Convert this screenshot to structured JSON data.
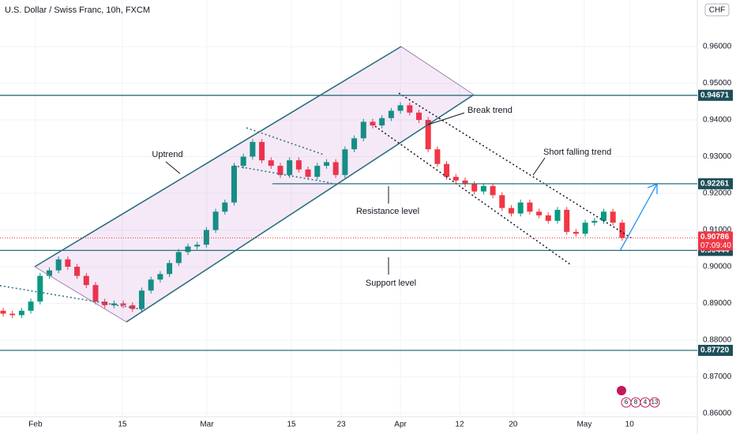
{
  "chart_data": {
    "type": "candlestick",
    "title": "U.S. Dollar / Swiss Franc, 10h, FXCM",
    "currency": "CHF",
    "up_color": "#089981",
    "down_color": "#f23645",
    "xlim": [
      -0.34,
      75.13
    ],
    "ylim": [
      0.85914,
      0.97269
    ],
    "xticks": [
      {
        "value": 3.5,
        "label": "Feb"
      },
      {
        "value": 12.9,
        "label": "15"
      },
      {
        "value": 22.05,
        "label": "Mar"
      },
      {
        "value": 31.2,
        "label": "15"
      },
      {
        "value": 36.6,
        "label": "23"
      },
      {
        "value": 43,
        "label": "Apr"
      },
      {
        "value": 49.4,
        "label": "12"
      },
      {
        "value": 55.2,
        "label": "20"
      },
      {
        "value": 62.9,
        "label": "May"
      },
      {
        "value": 67.8,
        "label": "10"
      }
    ],
    "yticks": [
      {
        "value": 0.86,
        "label": "0.86000"
      },
      {
        "value": 0.87,
        "label": "0.87000"
      },
      {
        "value": 0.88,
        "label": "0.88000"
      },
      {
        "value": 0.89,
        "label": "0.89000"
      },
      {
        "value": 0.9,
        "label": "0.90000"
      },
      {
        "value": 0.91,
        "label": "0.91000"
      },
      {
        "value": 0.92,
        "label": "0.92000"
      },
      {
        "value": 0.93,
        "label": "0.93000"
      },
      {
        "value": 0.94,
        "label": "0.94000"
      },
      {
        "value": 0.95,
        "label": "0.95000"
      },
      {
        "value": 0.96,
        "label": "0.96000"
      }
    ],
    "open": [
      0.888,
      0.8872,
      0.8868,
      0.888,
      0.8905,
      0.8975,
      0.899,
      0.902,
      0.9,
      0.8975,
      0.895,
      0.8905,
      0.8895,
      0.89,
      0.8895,
      0.8885,
      0.8935,
      0.8965,
      0.898,
      0.901,
      0.904,
      0.9055,
      0.906,
      0.91,
      0.915,
      0.9175,
      0.9275,
      0.93,
      0.934,
      0.929,
      0.9275,
      0.925,
      0.929,
      0.9265,
      0.9245,
      0.9275,
      0.9285,
      0.925,
      0.932,
      0.935,
      0.9395,
      0.9385,
      0.9405,
      0.9425,
      0.944,
      0.942,
      0.94,
      0.932,
      0.928,
      0.9245,
      0.9235,
      0.9225,
      0.9205,
      0.922,
      0.9195,
      0.916,
      0.9145,
      0.9175,
      0.915,
      0.914,
      0.9125,
      0.9155,
      0.9095,
      0.909,
      0.912,
      0.9125,
      0.915,
      0.912
    ],
    "high": [
      0.8888,
      0.888,
      0.8888,
      0.8913,
      0.8983,
      0.8998,
      0.9028,
      0.9028,
      0.9008,
      0.8983,
      0.8958,
      0.8913,
      0.8908,
      0.8908,
      0.8903,
      0.8943,
      0.8973,
      0.8988,
      0.9018,
      0.9048,
      0.9063,
      0.9068,
      0.9108,
      0.9158,
      0.9183,
      0.9283,
      0.9308,
      0.9348,
      0.9348,
      0.9298,
      0.9283,
      0.9298,
      0.9298,
      0.9273,
      0.9283,
      0.9293,
      0.9293,
      0.9328,
      0.9358,
      0.9403,
      0.9403,
      0.9413,
      0.9433,
      0.9448,
      0.9448,
      0.9428,
      0.9408,
      0.9328,
      0.9288,
      0.9253,
      0.9243,
      0.9233,
      0.9228,
      0.9228,
      0.9203,
      0.9168,
      0.9183,
      0.9183,
      0.9158,
      0.9148,
      0.9163,
      0.9163,
      0.9103,
      0.9128,
      0.9133,
      0.9158,
      0.9158,
      0.9128
    ],
    "low": [
      0.8864,
      0.886,
      0.886,
      0.8872,
      0.8897,
      0.8967,
      0.8982,
      0.8992,
      0.8967,
      0.8942,
      0.8897,
      0.8887,
      0.8887,
      0.8887,
      0.8877,
      0.8877,
      0.8927,
      0.8957,
      0.8972,
      0.9002,
      0.9032,
      0.9047,
      0.9052,
      0.9092,
      0.9142,
      0.9167,
      0.9267,
      0.9292,
      0.9282,
      0.9267,
      0.9242,
      0.9242,
      0.9257,
      0.9237,
      0.9237,
      0.9267,
      0.9242,
      0.9242,
      0.9312,
      0.9342,
      0.9377,
      0.9377,
      0.9397,
      0.9417,
      0.9412,
      0.9392,
      0.9312,
      0.9272,
      0.9237,
      0.9227,
      0.9217,
      0.9197,
      0.9197,
      0.9187,
      0.9152,
      0.9137,
      0.9137,
      0.9142,
      0.9132,
      0.9117,
      0.9117,
      0.9087,
      0.9082,
      0.9082,
      0.9112,
      0.9117,
      0.9112,
      0.90706
    ],
    "close": [
      0.8872,
      0.8868,
      0.888,
      0.8905,
      0.8975,
      0.899,
      0.902,
      0.9,
      0.8975,
      0.895,
      0.8905,
      0.8895,
      0.89,
      0.8895,
      0.8885,
      0.8935,
      0.8965,
      0.898,
      0.901,
      0.904,
      0.9055,
      0.906,
      0.91,
      0.915,
      0.9175,
      0.9275,
      0.93,
      0.934,
      0.929,
      0.9275,
      0.925,
      0.929,
      0.9265,
      0.9245,
      0.9275,
      0.9285,
      0.925,
      0.932,
      0.935,
      0.9395,
      0.9385,
      0.9405,
      0.9425,
      0.944,
      0.942,
      0.94,
      0.932,
      0.928,
      0.9245,
      0.9235,
      0.9225,
      0.9205,
      0.922,
      0.9195,
      0.916,
      0.9145,
      0.9175,
      0.915,
      0.914,
      0.9125,
      0.9155,
      0.9095,
      0.909,
      0.912,
      0.9125,
      0.915,
      0.912,
      0.90786
    ],
    "levels": [
      {
        "value": 0.94671
      },
      {
        "value": 0.92261
      },
      {
        "value": 0.90444
      },
      {
        "value": 0.8772,
        "label": "0.87720"
      }
    ],
    "countdown": "07:09:40",
    "annotations": [
      "Uptrend",
      "Break trend",
      "Short falling trend",
      "Resistance level",
      "Support level"
    ],
    "badges": [
      "6",
      "8",
      "4",
      "13"
    ]
  }
}
